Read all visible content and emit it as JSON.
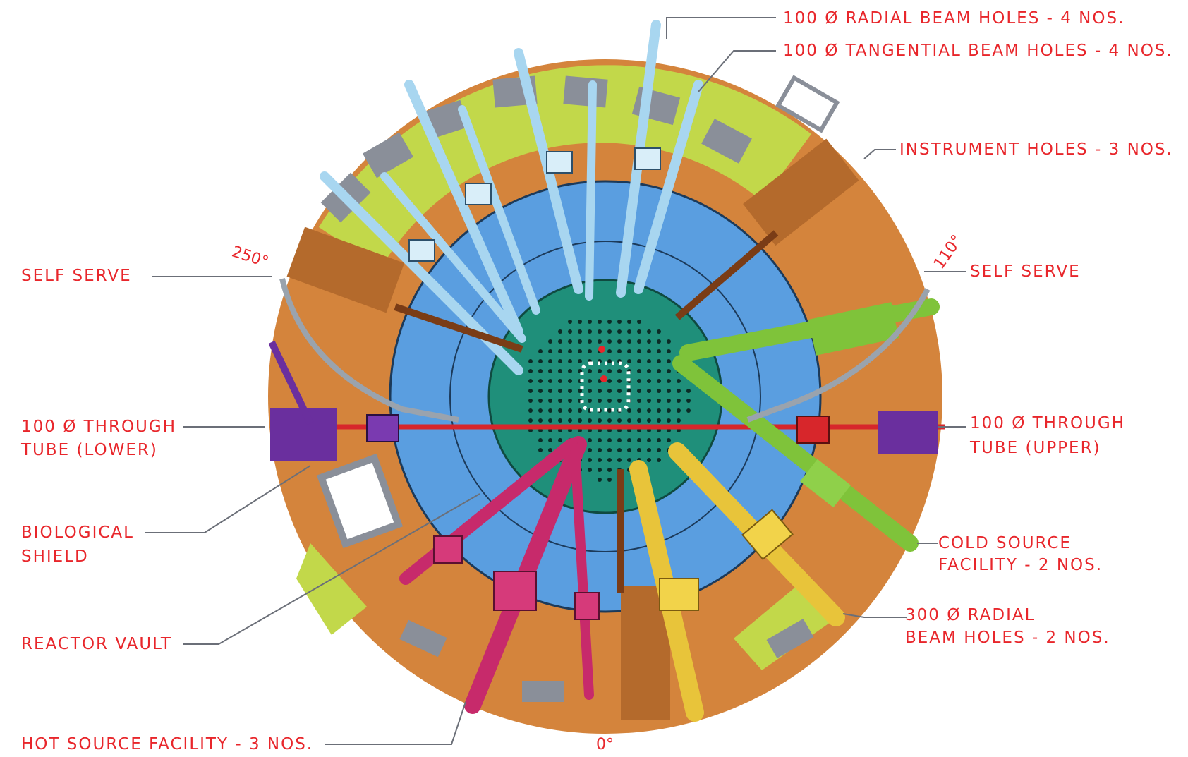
{
  "labels": {
    "radial_beam_holes": "100 Ø RADIAL BEAM HOLES - 4 NOS.",
    "tangential_beam_holes": "100 Ø TANGENTIAL BEAM HOLES - 4 NOS.",
    "instrument_holes": "INSTRUMENT HOLES - 3 NOS.",
    "self_serve_left": "SELF SERVE",
    "self_serve_right": "SELF SERVE",
    "through_tube_lower_1": "100 Ø THROUGH",
    "through_tube_lower_2": "TUBE (LOWER)",
    "through_tube_upper_1": "100 Ø THROUGH",
    "through_tube_upper_2": "TUBE (UPPER)",
    "biological_shield_1": "BIOLOGICAL",
    "biological_shield_2": "SHIELD",
    "cold_source_1": "COLD SOURCE",
    "cold_source_2": "FACILITY - 2 NOS.",
    "radial_300_1": "300 Ø RADIAL",
    "radial_300_2": "BEAM HOLES - 2 NOS.",
    "reactor_vault": "REACTOR VAULT",
    "hot_source": "HOT SOURCE FACILITY - 3 NOS."
  },
  "angles": {
    "deg_250": "250°",
    "deg_110": "110°",
    "deg_0": "0°"
  },
  "colors": {
    "label_red": "#e8262b",
    "shield_orange": "#d4843c",
    "outer_green": "#c2d84a",
    "vault_blue": "#5a9ee0",
    "core_teal": "#1f8f7a",
    "through_tube_red": "#d7262b",
    "through_tube_purple": "#6a2f9e",
    "cold_source_green": "#7fc33a",
    "hot_source_magenta": "#c72a6b",
    "radial_300_yellow": "#e8c43a",
    "instrument_copper": "#b46a2c",
    "beam_hole_lightblue": "#a8d6f0"
  }
}
